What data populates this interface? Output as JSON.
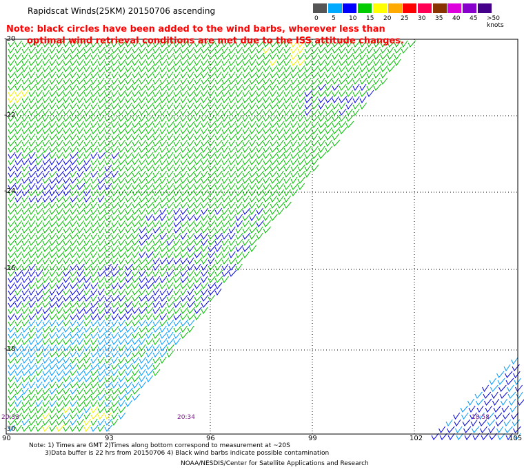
{
  "title": "Rapidscat Winds(25KM) 20150706 ascending",
  "note": {
    "line1": "Note: black circles have been added to the wind barbs, wherever less than",
    "line2": "optimal wind retrieval conditions are met due to the ISS attitude changes."
  },
  "legend": {
    "colors": [
      "#555555",
      "#00aaff",
      "#0000ff",
      "#00cc00",
      "#ffff00",
      "#ffaa00",
      "#ff0000",
      "#ff0055",
      "#883300",
      "#dd00dd",
      "#8800cc",
      "#440088"
    ],
    "labels": [
      "0",
      "5",
      "10",
      "15",
      "20",
      "25",
      "30",
      "35",
      "40",
      "45",
      ">50 knots"
    ]
  },
  "axes": {
    "lat_labels": [
      "-20",
      "-22",
      "-24",
      "-26",
      "-28",
      "-30"
    ],
    "lon_labels": [
      "90",
      "93",
      "96",
      "99",
      "102",
      "105"
    ]
  },
  "pass_times": {
    "left_1": "20:33",
    "left_2": "20:34",
    "right": "18:58"
  },
  "colors": {
    "green": "#00bb00",
    "blue": "#0000dd",
    "light_blue": "#0099ff",
    "yellow": "#eeee00",
    "grid": "#000000",
    "note_red": "#ff0000",
    "time_label": "#7a1a8a"
  },
  "footer": {
    "line1": "Note: 1) Times are GMT 2)Times along bottom correspond to measurement at ~20S",
    "line2": "3)Data buffer is 22 hrs from 20150706 4) Black wind barbs indicate possible contamination",
    "credit": "NOAA/NESDIS/Center for Satellite Applications and Research"
  }
}
